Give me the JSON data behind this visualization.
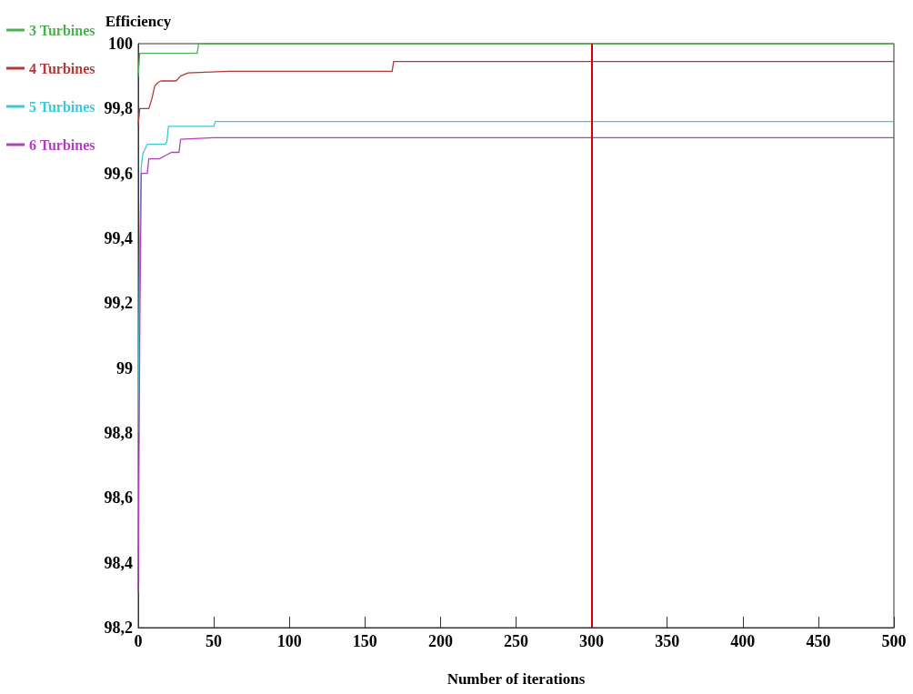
{
  "chart_data": {
    "type": "line",
    "xlabel": "Number of iterations",
    "ylabel": "Efficiency",
    "xlim": [
      0,
      500
    ],
    "xticks": [
      0,
      50,
      100,
      150,
      200,
      250,
      300,
      350,
      400,
      450,
      500
    ],
    "ylim": [
      98.2,
      100
    ],
    "yticks": [
      {
        "value": 98.2,
        "label": "98,2"
      },
      {
        "value": 98.4,
        "label": "98,4"
      },
      {
        "value": 98.6,
        "label": "98,6"
      },
      {
        "value": 98.8,
        "label": "98,8"
      },
      {
        "value": 99,
        "label": "99"
      },
      {
        "value": 99.2,
        "label": "99,2"
      },
      {
        "value": 99.4,
        "label": "99,4"
      },
      {
        "value": 99.6,
        "label": "99,6"
      },
      {
        "value": 99.8,
        "label": "99,8"
      },
      {
        "value": 100,
        "label": "100"
      }
    ],
    "grid": false,
    "legend": "top left",
    "marker": "none",
    "line_style": "solid",
    "ref_lines": [
      {
        "axis": "x",
        "value": 300,
        "label": null,
        "color": "#d40000"
      }
    ],
    "series": [
      {
        "name": "3 Turbines",
        "color": "#4caf50",
        "x": [
          0,
          1,
          39,
          40,
          500
        ],
        "values": [
          99.9,
          99.97,
          99.97,
          100,
          100
        ]
      },
      {
        "name": "4 Turbines",
        "color": "#b03a3a",
        "x": [
          0,
          1,
          7,
          9,
          11,
          13,
          15,
          25,
          28,
          33,
          60,
          168,
          169,
          500
        ],
        "values": [
          99.75,
          99.8,
          99.8,
          99.83,
          99.87,
          99.88,
          99.885,
          99.885,
          99.9,
          99.91,
          99.915,
          99.915,
          99.945,
          99.945
        ]
      },
      {
        "name": "5 Turbines",
        "color": "#3cc8d8",
        "x": [
          0,
          1,
          2,
          3,
          6,
          18,
          19,
          20,
          50,
          51,
          500
        ],
        "values": [
          98.8,
          99.4,
          99.62,
          99.66,
          99.69,
          99.69,
          99.7,
          99.745,
          99.745,
          99.76,
          99.76
        ]
      },
      {
        "name": "6 Turbines",
        "color": "#b040c0",
        "x": [
          0,
          1,
          2,
          6,
          7,
          14,
          18,
          22,
          27,
          28,
          50,
          500
        ],
        "values": [
          98.31,
          99.1,
          99.6,
          99.6,
          99.645,
          99.645,
          99.655,
          99.665,
          99.665,
          99.705,
          99.71,
          99.71
        ]
      }
    ]
  }
}
